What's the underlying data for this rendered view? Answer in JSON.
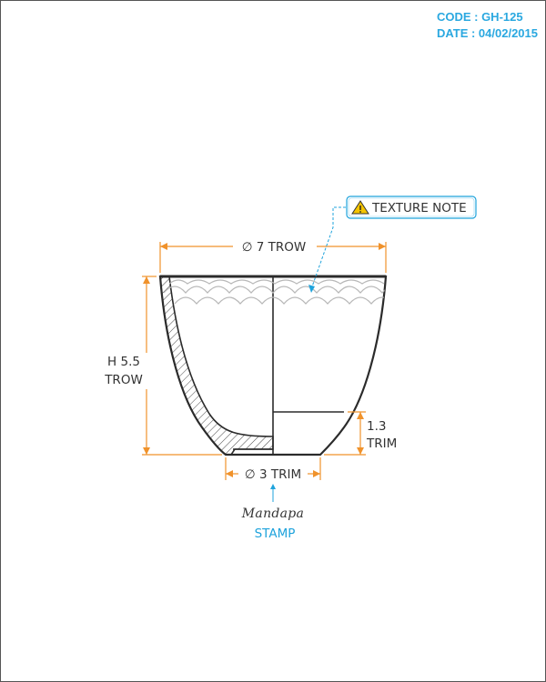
{
  "header": {
    "code": "CODE : GH-125",
    "date": "DATE : 04/02/2015"
  },
  "callouts": {
    "texture_note": "TEXTURE NOTE",
    "stamp": "STAMP",
    "logo_text": "Mandapa"
  },
  "dimensions": {
    "top_diameter": "∅ 7 TROW",
    "height_line1": "H 5.5",
    "height_line2": "TROW",
    "foot_height_line1": "1.3",
    "foot_height_line2": "TRIM",
    "base_diameter": "∅ 3 TRIM"
  },
  "colors": {
    "dimension": "#f0922b",
    "callout": "#1fa3dc",
    "outline": "#2b2b2b",
    "texture": "#b8b8b8"
  }
}
